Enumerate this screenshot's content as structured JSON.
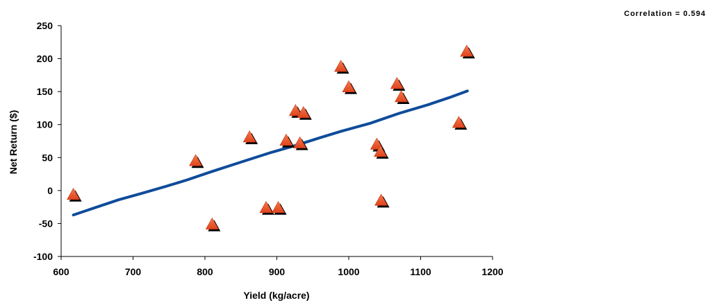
{
  "chart_data": {
    "type": "scatter",
    "title": "",
    "xlabel": "Yield (kg/acre)",
    "ylabel": "Net Return ($)",
    "xlim": [
      600,
      1200
    ],
    "ylim": [
      -100,
      250
    ],
    "xticks": [
      600,
      700,
      800,
      900,
      1000,
      1100,
      1200
    ],
    "yticks": [
      -100,
      -50,
      0,
      50,
      100,
      150,
      200,
      250
    ],
    "grid": false,
    "annotation": "Correlation = 0.594",
    "marker_color": "#e8502b",
    "marker_shadow_color": "#000000",
    "line_color": "#0f4c9a",
    "points": [
      {
        "x": 617,
        "y": -6
      },
      {
        "x": 787,
        "y": 45
      },
      {
        "x": 810,
        "y": -51
      },
      {
        "x": 862,
        "y": 81
      },
      {
        "x": 885,
        "y": -26
      },
      {
        "x": 902,
        "y": -26
      },
      {
        "x": 913,
        "y": 76
      },
      {
        "x": 926,
        "y": 121
      },
      {
        "x": 932,
        "y": 72
      },
      {
        "x": 937,
        "y": 118
      },
      {
        "x": 989,
        "y": 188
      },
      {
        "x": 1000,
        "y": 157
      },
      {
        "x": 1039,
        "y": 70
      },
      {
        "x": 1044,
        "y": 59
      },
      {
        "x": 1045,
        "y": -15
      },
      {
        "x": 1067,
        "y": 162
      },
      {
        "x": 1073,
        "y": 142
      },
      {
        "x": 1153,
        "y": 103
      },
      {
        "x": 1164,
        "y": 211
      }
    ],
    "trendline": {
      "x": [
        617,
        680,
        710,
        745,
        775,
        810,
        850,
        890,
        925,
        960,
        990,
        1030,
        1070,
        1110,
        1140,
        1165
      ],
      "y": [
        -37,
        -14,
        -5,
        6,
        16,
        29,
        43,
        57,
        68,
        80,
        90,
        102,
        117,
        130,
        141,
        151
      ]
    }
  }
}
